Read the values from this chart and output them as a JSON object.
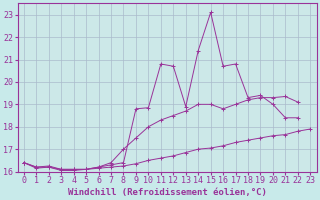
{
  "xlabel": "Windchill (Refroidissement éolien,°C)",
  "x_values": [
    0,
    1,
    2,
    3,
    4,
    5,
    6,
    7,
    8,
    9,
    10,
    11,
    12,
    13,
    14,
    15,
    16,
    17,
    18,
    19,
    20,
    21,
    22,
    23
  ],
  "curve_upper": [
    16.4,
    16.2,
    16.25,
    16.1,
    16.1,
    16.1,
    16.2,
    16.3,
    16.4,
    18.8,
    18.85,
    20.8,
    20.7,
    18.9,
    21.4,
    23.1,
    20.7,
    20.8,
    19.3,
    19.4,
    19.0,
    18.4,
    18.4,
    null
  ],
  "curve_middle": [
    16.4,
    16.2,
    16.2,
    16.1,
    16.1,
    16.1,
    16.2,
    16.4,
    17.0,
    17.5,
    18.0,
    18.3,
    18.5,
    18.7,
    19.0,
    19.0,
    18.8,
    19.0,
    19.2,
    19.3,
    19.3,
    19.35,
    19.1,
    null
  ],
  "curve_lower": [
    16.4,
    16.15,
    16.2,
    16.05,
    16.05,
    16.1,
    16.15,
    16.2,
    16.25,
    16.35,
    16.5,
    16.6,
    16.7,
    16.85,
    17.0,
    17.05,
    17.15,
    17.3,
    17.4,
    17.5,
    17.6,
    17.65,
    17.8,
    17.9
  ],
  "line_color": "#993399",
  "bg_color": "#c8eaea",
  "grid_color": "#aabbcc",
  "plot_bg": "#cce8e8",
  "ylim": [
    16.0,
    23.5
  ],
  "xlim": [
    -0.5,
    23.5
  ],
  "yticks": [
    16,
    17,
    18,
    19,
    20,
    21,
    22,
    23
  ],
  "xticks": [
    0,
    1,
    2,
    3,
    4,
    5,
    6,
    7,
    8,
    9,
    10,
    11,
    12,
    13,
    14,
    15,
    16,
    17,
    18,
    19,
    20,
    21,
    22,
    23
  ],
  "xlabel_fontsize": 6.5,
  "tick_fontsize": 6,
  "marker_size": 2.5,
  "linewidth": 0.7
}
